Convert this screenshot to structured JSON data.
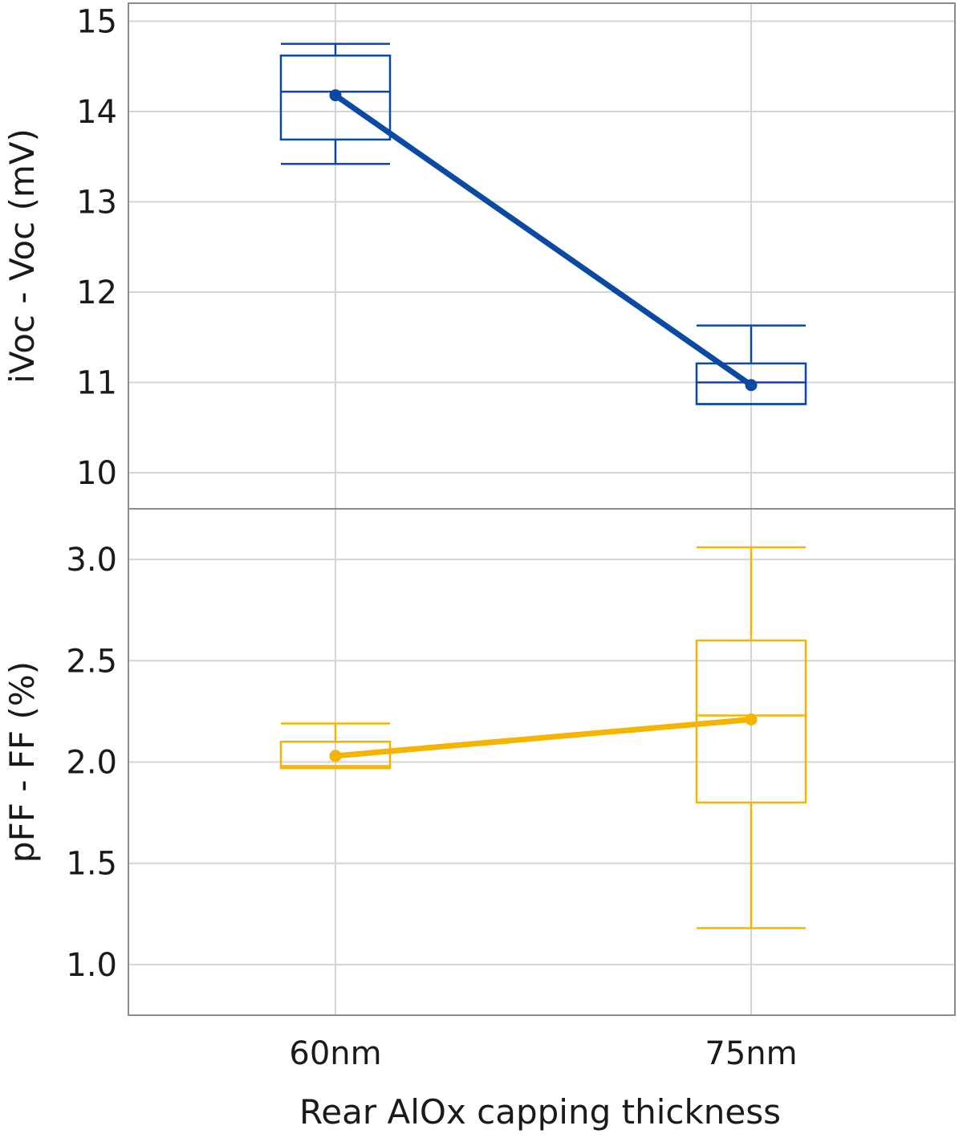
{
  "chart_data": {
    "type": "box-plot-with-mean-line",
    "categories": [
      "60nm",
      "75nm"
    ],
    "xlabel": "Rear AlOx capping thickness",
    "panels": [
      {
        "name": "voc",
        "ylabel": "iVoc - Voc (mV)",
        "ylim": [
          9.6,
          15.2
        ],
        "yticks": [
          10,
          11,
          12,
          13,
          14,
          15
        ],
        "tick_labels": [
          "10",
          "11",
          "12",
          "13",
          "14",
          "15"
        ],
        "color": "#0b4aa2",
        "boxes": [
          {
            "category": "60nm",
            "min": 13.42,
            "q1": 13.69,
            "median": 14.22,
            "q3": 14.62,
            "max": 14.75,
            "mean": 14.18
          },
          {
            "category": "75nm",
            "min": 10.76,
            "q1": 10.76,
            "median": 11.0,
            "q3": 11.21,
            "max": 11.63,
            "mean": 10.97
          }
        ]
      },
      {
        "name": "ff",
        "ylabel": "pFF - FF (%)",
        "ylim": [
          0.75,
          3.25
        ],
        "yticks": [
          1.0,
          1.5,
          2.0,
          2.5,
          3.0
        ],
        "tick_labels": [
          "1.0",
          "1.5",
          "2.0",
          "2.5",
          "3.0"
        ],
        "color": "#f5b400",
        "boxes": [
          {
            "category": "60nm",
            "min": 1.97,
            "q1": 1.97,
            "median": 1.98,
            "q3": 2.1,
            "max": 2.19,
            "mean": 2.03
          },
          {
            "category": "75nm",
            "min": 1.18,
            "q1": 1.8,
            "median": 2.23,
            "q3": 2.6,
            "max": 3.06,
            "mean": 2.21
          }
        ]
      }
    ]
  }
}
